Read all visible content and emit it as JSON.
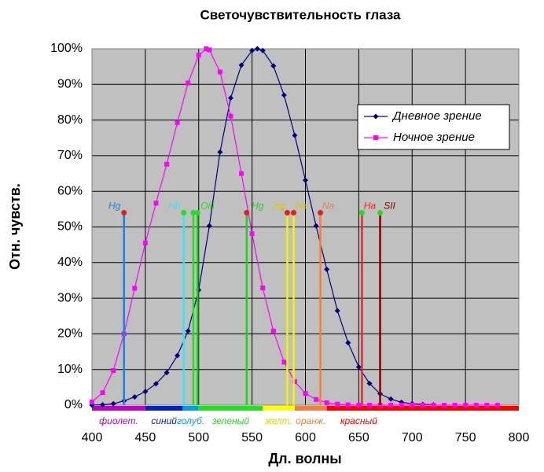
{
  "chart_data": {
    "type": "line",
    "title": "Светочувствительность глаза",
    "x_label": "Дл. волны",
    "y_label": "Отн. чувств.",
    "xlim": [
      400,
      800
    ],
    "xticks": [
      400,
      450,
      500,
      550,
      600,
      650,
      700,
      750,
      800
    ],
    "ylim": [
      0,
      100
    ],
    "yticks": [
      {
        "value": 0,
        "label": "0%"
      },
      {
        "value": 10,
        "label": "10%"
      },
      {
        "value": 20,
        "label": "20%"
      },
      {
        "value": 30,
        "label": "30%"
      },
      {
        "value": 40,
        "label": "40%"
      },
      {
        "value": 50,
        "label": "50%"
      },
      {
        "value": 60,
        "label": "60%"
      },
      {
        "value": 70,
        "label": "70%"
      },
      {
        "value": 80,
        "label": "80%"
      },
      {
        "value": 90,
        "label": "90%"
      },
      {
        "value": 100,
        "label": "100%"
      }
    ],
    "grid": true,
    "background": "#c0c0c0",
    "legend_position": "upper-right",
    "series": [
      {
        "name": "Дневное зрение",
        "color": "#000080",
        "marker": "diamond",
        "x": [
          400,
          410,
          420,
          430,
          440,
          450,
          460,
          470,
          480,
          490,
          500,
          510,
          520,
          530,
          540,
          550,
          555,
          560,
          570,
          580,
          590,
          600,
          610,
          620,
          630,
          640,
          650,
          660,
          670,
          680,
          690,
          700,
          710,
          720
        ],
        "values": [
          0,
          0.1,
          0.4,
          1.2,
          2.3,
          3.8,
          6,
          9.1,
          13.9,
          20.8,
          32.3,
          50.3,
          71,
          86.2,
          95.4,
          99.5,
          100,
          99.5,
          95.2,
          87,
          75.7,
          63.1,
          50.3,
          38.1,
          26.5,
          17.5,
          10.7,
          6.1,
          3.2,
          1.7,
          0.8,
          0.4,
          0.2,
          0.1
        ]
      },
      {
        "name": "Ночное зрение",
        "color": "#ff00ff",
        "marker": "square",
        "x": [
          400,
          410,
          420,
          430,
          440,
          450,
          460,
          470,
          480,
          490,
          500,
          507,
          510,
          520,
          530,
          540,
          550,
          560,
          570,
          580,
          590,
          600,
          610,
          620,
          630,
          640,
          650,
          660,
          670,
          680,
          690,
          700,
          710,
          720,
          730,
          740,
          750,
          760,
          770,
          780
        ],
        "values": [
          0.9,
          3.5,
          9.7,
          20,
          32.8,
          45.5,
          56.7,
          67.6,
          79.3,
          90.4,
          98.2,
          100,
          99.7,
          93.5,
          81.1,
          65,
          48.1,
          32.9,
          20.8,
          12.1,
          6.6,
          3.3,
          1.6,
          0.7,
          0.3,
          0.1,
          0,
          0,
          0,
          0,
          0,
          0,
          0,
          0,
          0,
          0,
          0,
          0,
          0,
          0
        ]
      }
    ],
    "spectral_lines": [
      {
        "label": "Hg",
        "wavelength": 430,
        "height": 54,
        "color": "#2080e0",
        "dot": "#e02020"
      },
      {
        "label": "Hb",
        "wavelength": 486,
        "height": 54,
        "color": "#40e0f0",
        "dot": "#20e020"
      },
      {
        "label": "Oiii",
        "wavelength": 495,
        "height": 54,
        "color": "#20e020",
        "dot": "#20e020"
      },
      {
        "label": "Oiii",
        "wavelength": 499,
        "height": 54,
        "color": "#20c020",
        "dot": "#20e020"
      },
      {
        "label": "Hg",
        "wavelength": 545,
        "height": 54,
        "color": "#20d020",
        "dot": "#e02020"
      },
      {
        "label": "Hg",
        "wavelength": 583,
        "height": 54,
        "color": "#f0f020",
        "dot": "#e02020"
      },
      {
        "label": "Na",
        "wavelength": 589,
        "height": 54,
        "color": "#f0f020",
        "dot": "#e02020"
      },
      {
        "label": "Na",
        "wavelength": 614,
        "height": 54,
        "color": "#f08040",
        "dot": "#e02020"
      },
      {
        "label": "Ha",
        "wavelength": 653,
        "height": 54,
        "color": "#ff2020",
        "dot": "#20e020"
      },
      {
        "label": "SII",
        "wavelength": 670,
        "height": 54,
        "color": "#800000",
        "dot": "#20e020"
      }
    ],
    "bands": [
      {
        "label": "фиолет.",
        "from": 400,
        "to": 450,
        "color": "#c000c0"
      },
      {
        "label": "синий",
        "from": 450,
        "to": 485,
        "color": "#0020c0"
      },
      {
        "label": "голуб.",
        "from": 485,
        "to": 500,
        "color": "#00a0e0"
      },
      {
        "label": "зеленый",
        "from": 500,
        "to": 560,
        "color": "#20e020"
      },
      {
        "label": "желт.",
        "from": 560,
        "to": 590,
        "color": "#ffff00"
      },
      {
        "label": "оранж.",
        "from": 590,
        "to": 620,
        "color": "#f08040"
      },
      {
        "label": "красный",
        "from": 620,
        "to": 800,
        "color": "#ff0000"
      }
    ]
  }
}
